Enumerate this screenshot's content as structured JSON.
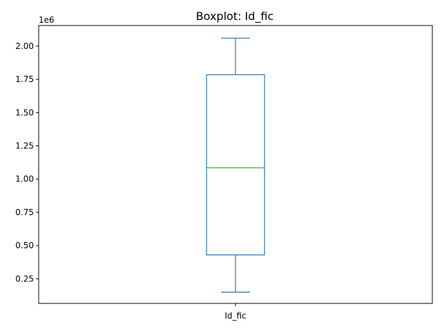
{
  "chart_data": {
    "type": "boxplot",
    "title": "Boxplot: Id_fic",
    "xlabel": "",
    "ylabel": "",
    "y_offset_label": "1e6",
    "categories": [
      "Id_fic"
    ],
    "boxes": [
      {
        "category": "Id_fic",
        "whisker_low": 0.15,
        "q1": 0.43,
        "median": 1.085,
        "q3": 1.785,
        "whisker_high": 2.06
      }
    ],
    "y_scale_multiplier": 1000000,
    "ylim": [
      0.065,
      2.155
    ],
    "yticks": [
      0.25,
      0.5,
      0.75,
      1.0,
      1.25,
      1.5,
      1.75,
      2.0
    ],
    "ytick_labels": [
      "0.25",
      "0.50",
      "0.75",
      "1.00",
      "1.25",
      "1.50",
      "1.75",
      "2.00"
    ],
    "grid": false,
    "colors": {
      "box": "#1f77b4",
      "median": "#2ca02c",
      "axes": "#000000"
    }
  }
}
